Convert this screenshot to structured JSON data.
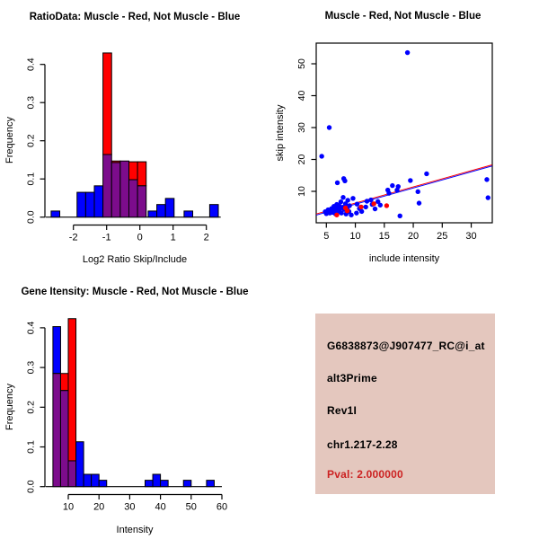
{
  "page": {
    "background": "#FFFFFF"
  },
  "chart_data": [
    {
      "type": "histogram",
      "title": "RatioData: Muscle - Red, Not Muscle - Blue",
      "xlabel": "Log2 Ratio Skip/Include",
      "ylabel": "Frequency",
      "legend_note": "Muscle = red, Not Muscle = blue, overlap = purple",
      "xticks": [
        -2,
        -1,
        0,
        1,
        2
      ],
      "xtick_labels": [
        "-2",
        "-1",
        "0",
        "1",
        "2"
      ],
      "yticks": [
        0,
        0.1,
        0.2,
        0.3,
        0.4
      ],
      "ytick_labels": [
        "0.0",
        "0.1",
        "0.2",
        "0.3",
        "0.4"
      ],
      "xlim": [
        -2.84,
        2.43
      ],
      "ylim": [
        0,
        0.43
      ],
      "bin_width": 0.26,
      "bars": [
        {
          "x": -2.67,
          "blue": 0.016,
          "red": 0
        },
        {
          "x": -1.89,
          "blue": 0.065,
          "red": 0
        },
        {
          "x": -1.63,
          "blue": 0.065,
          "red": 0
        },
        {
          "x": -1.37,
          "blue": 0.082,
          "red": 0
        },
        {
          "x": -1.11,
          "blue": 0.164,
          "red": 0.43
        },
        {
          "x": -0.85,
          "blue": 0.143,
          "red": 0.147
        },
        {
          "x": -0.59,
          "blue": 0.147,
          "red": 0.147
        },
        {
          "x": -0.33,
          "blue": 0.098,
          "red": 0.145
        },
        {
          "x": -0.07,
          "blue": 0.082,
          "red": 0.145
        },
        {
          "x": 0.25,
          "blue": 0.016,
          "red": 0
        },
        {
          "x": 0.51,
          "blue": 0.033,
          "red": 0
        },
        {
          "x": 0.77,
          "blue": 0.049,
          "red": 0
        },
        {
          "x": 1.33,
          "blue": 0.016,
          "red": 0
        },
        {
          "x": 2.1,
          "blue": 0.033,
          "red": 0
        }
      ],
      "colors": {
        "red": "#FF0000",
        "blue": "#0000FF",
        "overlap": "#7C0C8C"
      }
    },
    {
      "type": "scatter",
      "title": "Muscle - Red, Not Muscle - Blue",
      "xlabel": "include intensity",
      "ylabel": "skip intensity",
      "xticks": [
        5,
        10,
        15,
        20,
        25,
        30
      ],
      "xtick_labels": [
        "5",
        "10",
        "15",
        "20",
        "25",
        "30"
      ],
      "yticks": [
        10,
        20,
        30,
        40,
        50
      ],
      "ytick_labels": [
        "10",
        "20",
        "30",
        "40",
        "50"
      ],
      "xlim": [
        3.25,
        33.6
      ],
      "ylim": [
        0.1,
        56.5
      ],
      "series": [
        {
          "name": "Not Muscle",
          "color": "#0000FF",
          "points": [
            [
              19.0,
              53.5
            ],
            [
              5.5,
              30.0
            ],
            [
              4.2,
              21.0
            ],
            [
              22.3,
              15.5
            ],
            [
              32.7,
              13.7
            ],
            [
              32.9,
              8.0
            ],
            [
              8.0,
              14.0
            ],
            [
              8.2,
              13.3
            ],
            [
              6.9,
              12.7
            ],
            [
              16.4,
              11.8
            ],
            [
              15.6,
              10.4
            ],
            [
              19.5,
              13.4
            ],
            [
              17.4,
              11.5
            ],
            [
              17.2,
              10.4
            ],
            [
              20.8,
              9.9
            ],
            [
              21.0,
              6.3
            ],
            [
              17.7,
              2.3
            ],
            [
              15.8,
              9.4
            ],
            [
              14.3,
              5.7
            ],
            [
              13.9,
              6.8
            ],
            [
              13.4,
              4.5
            ],
            [
              12.9,
              5.9
            ],
            [
              12.7,
              7.3
            ],
            [
              12.0,
              6.9
            ],
            [
              11.8,
              5.1
            ],
            [
              11.1,
              3.7
            ],
            [
              10.7,
              4.6
            ],
            [
              10.3,
              6.0
            ],
            [
              10.2,
              3.2
            ],
            [
              9.6,
              7.8
            ],
            [
              9.3,
              2.6
            ],
            [
              4.8,
              3.6
            ],
            [
              5.0,
              3.0
            ],
            [
              5.3,
              4.2
            ],
            [
              5.6,
              3.2
            ],
            [
              5.9,
              4.6
            ],
            [
              6.1,
              3.4
            ],
            [
              6.3,
              5.3
            ],
            [
              6.5,
              4.0
            ],
            [
              6.6,
              2.9
            ],
            [
              6.8,
              5.9
            ],
            [
              6.9,
              4.6
            ],
            [
              7.0,
              3.4
            ],
            [
              7.2,
              5.5
            ],
            [
              7.3,
              4.3
            ],
            [
              7.5,
              6.7
            ],
            [
              7.6,
              3.2
            ],
            [
              7.8,
              5.0
            ],
            [
              7.9,
              8.1
            ],
            [
              8.1,
              4.3
            ],
            [
              8.3,
              6.1
            ],
            [
              8.4,
              2.9
            ],
            [
              8.6,
              4.7
            ],
            [
              8.7,
              7.2
            ],
            [
              8.9,
              3.7
            ],
            [
              9.0,
              5.5
            ]
          ]
        },
        {
          "name": "Muscle",
          "color": "#FF0000",
          "points": [
            [
              6.8,
              2.6
            ],
            [
              8.3,
              4.8
            ],
            [
              8.6,
              3.9
            ],
            [
              11.0,
              5.1
            ],
            [
              13.2,
              6.1
            ],
            [
              15.4,
              5.5
            ]
          ]
        }
      ],
      "fit_lines": [
        {
          "name": "not-muscle-fit",
          "color": "#0000FF",
          "from": [
            3.25,
            2.55
          ],
          "to": [
            33.6,
            17.95
          ]
        },
        {
          "name": "muscle-fit",
          "color": "#FF0000",
          "from": [
            3.25,
            2.9
          ],
          "to": [
            33.6,
            18.3
          ]
        }
      ]
    },
    {
      "type": "histogram",
      "title": "Gene Itensity: Muscle - Red, Not Muscle - Blue",
      "xlabel": "Intensity",
      "ylabel": "Frequency",
      "legend_note": "Muscle = red, Not Muscle = blue, overlap = purple",
      "xticks": [
        10,
        20,
        30,
        40,
        50,
        60
      ],
      "xtick_labels": [
        "10",
        "20",
        "30",
        "40",
        "50",
        "60"
      ],
      "yticks": [
        0,
        0.1,
        0.2,
        0.3,
        0.4
      ],
      "ytick_labels": [
        "0.0",
        "0.1",
        "0.2",
        "0.3",
        "0.4"
      ],
      "xlim": [
        2.6,
        60
      ],
      "ylim": [
        0,
        0.43
      ],
      "bin_width": 2.5,
      "bars": [
        {
          "x": 5,
          "blue": 0.403,
          "red": 0.285
        },
        {
          "x": 7.5,
          "blue": 0.242,
          "red": 0.285
        },
        {
          "x": 10,
          "blue": 0.065,
          "red": 0.423
        },
        {
          "x": 12.5,
          "blue": 0.113,
          "red": 0
        },
        {
          "x": 15,
          "blue": 0.031,
          "red": 0
        },
        {
          "x": 17.5,
          "blue": 0.031,
          "red": 0
        },
        {
          "x": 20,
          "blue": 0.016,
          "red": 0
        },
        {
          "x": 35,
          "blue": 0.016,
          "red": 0
        },
        {
          "x": 37.5,
          "blue": 0.031,
          "red": 0
        },
        {
          "x": 40,
          "blue": 0.016,
          "red": 0
        },
        {
          "x": 47.5,
          "blue": 0.016,
          "red": 0
        },
        {
          "x": 55,
          "blue": 0.016,
          "red": 0
        }
      ],
      "colors": {
        "red": "#FF0000",
        "blue": "#0000FF",
        "overlap": "#7C0C8C"
      }
    }
  ],
  "info_panel": {
    "background": "#E4C7BE",
    "lines": [
      {
        "text": "G6838873@J907477_RC@i_at",
        "color": "#000000"
      },
      {
        "text": "alt3Prime",
        "color": "#000000"
      },
      {
        "text": "Rev1I",
        "color": "#000000"
      },
      {
        "text": "chr1.217-2.28",
        "color": "#000000"
      },
      {
        "text": "Pval: 2.000000",
        "color": "#CC2222"
      }
    ]
  }
}
